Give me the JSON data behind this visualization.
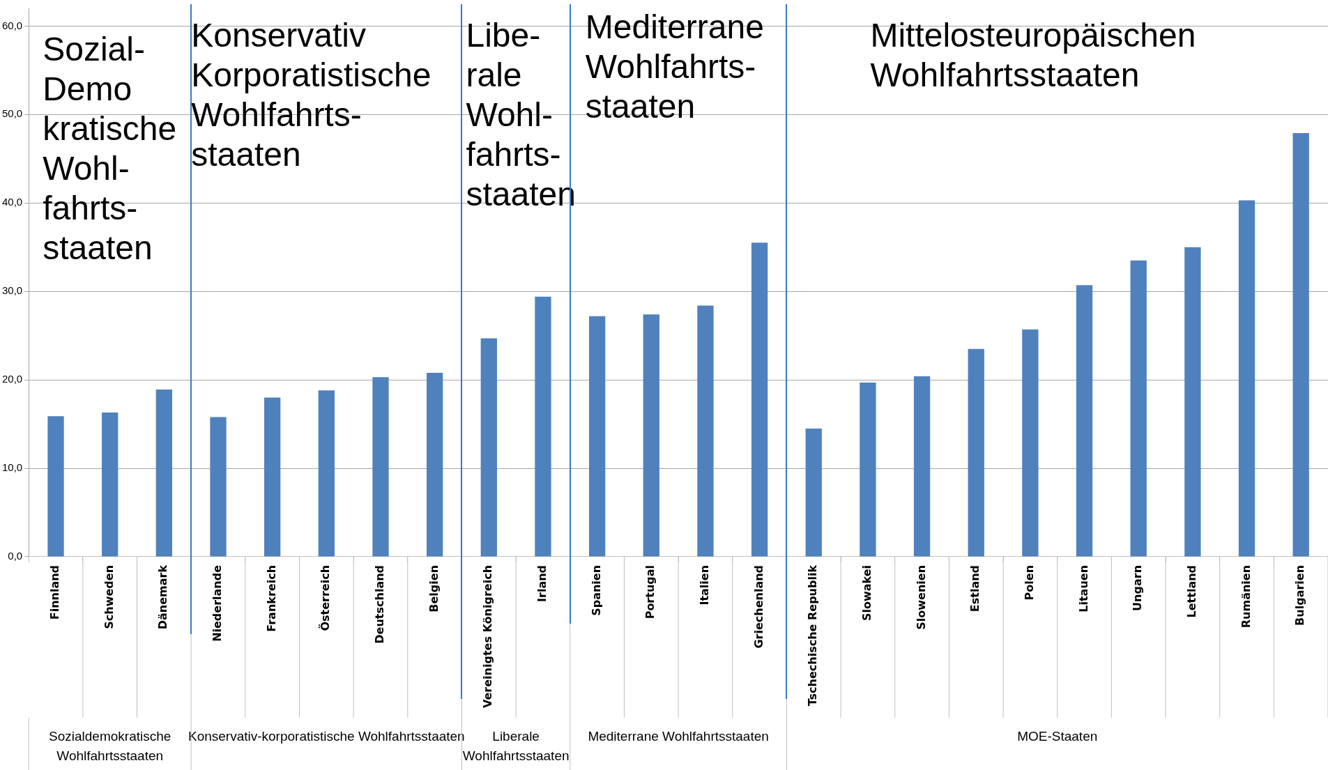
{
  "chart_data": {
    "type": "bar",
    "categories": [
      "Finnland",
      "Schweden",
      "Dänemark",
      "Niederlande",
      "Frankreich",
      "Österreich",
      "Deutschland",
      "Belgien",
      "Vereinigtes Königreich",
      "Irland",
      "Spanien",
      "Portugal",
      "Italien",
      "Griechenland",
      "Tschechische Republik",
      "Slowakei",
      "Slowenien",
      "Estland",
      "Polen",
      "Litauen",
      "Ungarn",
      "Lettland",
      "Rumänien",
      "Bulgarien"
    ],
    "values": [
      15.9,
      16.3,
      18.9,
      15.8,
      18.0,
      18.8,
      20.3,
      20.8,
      24.7,
      29.4,
      27.2,
      27.4,
      28.4,
      35.5,
      14.5,
      19.7,
      20.4,
      23.5,
      25.7,
      30.7,
      33.5,
      35.0,
      40.3,
      47.9
    ],
    "color": "#4f81bd",
    "ylim": [
      0,
      62
    ],
    "yticks": [
      {
        "value": 0,
        "label": "0,0"
      },
      {
        "value": 10,
        "label": "10,0"
      },
      {
        "value": 20,
        "label": "20,0"
      },
      {
        "value": 30,
        "label": "30,0"
      },
      {
        "value": 40,
        "label": "40,0"
      },
      {
        "value": 50,
        "label": "50,0"
      },
      {
        "value": 60,
        "label": "60,0"
      }
    ],
    "grid": "y",
    "annotations": [
      "Sozial-\nDemo\nkratische\nWohl-\nfahrts-\nstaaten",
      "Konservativ\nKorporatistische\nWohlfahrts-\nstaaten",
      "Libe-\nrale\nWohl-\nfahrts-\nstaaten",
      "Mediterrane\nWohlfahrts-\nstaaten",
      "Mittelosteuropäischen\nWohlfahrtsstaaten",
      "Sozialdemokratische\nWohlfahrtsstaaten",
      "Konservativ-korporatistische Wohlfahrtsstaaten",
      "Liberale\nWohlfahrtsstaaten",
      "Mediterrane Wohlfahrtsstaaten",
      "MOE-Staaten"
    ]
  }
}
